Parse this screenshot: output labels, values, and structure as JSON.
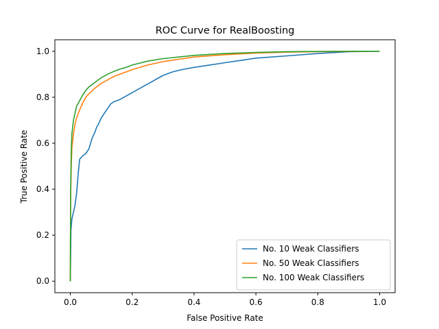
{
  "chart_data": {
    "type": "line",
    "title": "ROC Curve for RealBoosting",
    "xlabel": "False Positive Rate",
    "ylabel": "True Positive Rate",
    "xlim": [
      -0.05,
      1.05
    ],
    "ylim": [
      -0.05,
      1.05
    ],
    "xticks": [
      0.0,
      0.2,
      0.4,
      0.6,
      0.8,
      1.0
    ],
    "yticks": [
      0.0,
      0.2,
      0.4,
      0.6,
      0.8,
      1.0
    ],
    "xtick_labels": [
      "0.0",
      "0.2",
      "0.4",
      "0.6",
      "0.8",
      "1.0"
    ],
    "ytick_labels": [
      "0.0",
      "0.2",
      "0.4",
      "0.6",
      "0.8",
      "1.0"
    ],
    "grid": false,
    "legend_position": "lower-right",
    "series": [
      {
        "name": "No. 10 Weak Classifiers",
        "color": "#1f77b4",
        "x": [
          0,
          0.001,
          0.002,
          0.005,
          0.01,
          0.015,
          0.02,
          0.025,
          0.03,
          0.04,
          0.05,
          0.06,
          0.07,
          0.08,
          0.085,
          0.09,
          0.1,
          0.11,
          0.12,
          0.13,
          0.14,
          0.15,
          0.16,
          0.18,
          0.2,
          0.22,
          0.24,
          0.26,
          0.28,
          0.3,
          0.33,
          0.36,
          0.4,
          0.45,
          0.5,
          0.55,
          0.6,
          0.65,
          0.7,
          0.8,
          0.9,
          1.0
        ],
        "y": [
          0,
          0.1,
          0.22,
          0.27,
          0.3,
          0.33,
          0.38,
          0.46,
          0.53,
          0.545,
          0.555,
          0.575,
          0.62,
          0.65,
          0.67,
          0.68,
          0.71,
          0.73,
          0.75,
          0.77,
          0.78,
          0.785,
          0.79,
          0.805,
          0.82,
          0.835,
          0.85,
          0.865,
          0.88,
          0.895,
          0.91,
          0.92,
          0.93,
          0.94,
          0.95,
          0.96,
          0.97,
          0.975,
          0.98,
          0.99,
          0.998,
          1.0
        ]
      },
      {
        "name": "No. 50 Weak Classifiers",
        "color": "#ff7f0e",
        "x": [
          0,
          0.001,
          0.003,
          0.005,
          0.01,
          0.015,
          0.02,
          0.03,
          0.04,
          0.05,
          0.06,
          0.08,
          0.1,
          0.12,
          0.14,
          0.16,
          0.18,
          0.2,
          0.25,
          0.3,
          0.35,
          0.4,
          0.5,
          0.6,
          0.7,
          0.8,
          0.9,
          1.0
        ],
        "y": [
          0,
          0.35,
          0.5,
          0.58,
          0.64,
          0.68,
          0.71,
          0.745,
          0.775,
          0.8,
          0.815,
          0.84,
          0.86,
          0.875,
          0.89,
          0.9,
          0.91,
          0.92,
          0.94,
          0.955,
          0.965,
          0.975,
          0.985,
          0.992,
          0.996,
          0.998,
          0.999,
          1.0
        ]
      },
      {
        "name": "No. 100 Weak Classifiers",
        "color": "#2ca02c",
        "x": [
          0,
          0.001,
          0.003,
          0.005,
          0.01,
          0.015,
          0.02,
          0.03,
          0.04,
          0.05,
          0.06,
          0.08,
          0.1,
          0.12,
          0.14,
          0.16,
          0.18,
          0.2,
          0.25,
          0.3,
          0.35,
          0.4,
          0.5,
          0.6,
          0.7,
          0.8,
          0.9,
          1.0
        ],
        "y": [
          0,
          0.4,
          0.57,
          0.64,
          0.7,
          0.73,
          0.76,
          0.785,
          0.81,
          0.83,
          0.845,
          0.865,
          0.885,
          0.9,
          0.912,
          0.922,
          0.93,
          0.94,
          0.957,
          0.968,
          0.975,
          0.982,
          0.99,
          0.995,
          0.998,
          0.999,
          1.0,
          1.0
        ]
      }
    ]
  }
}
